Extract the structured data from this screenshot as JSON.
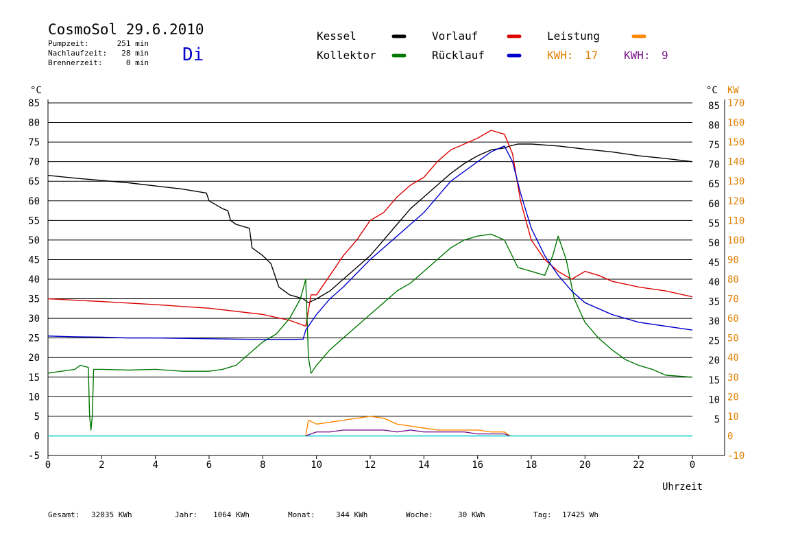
{
  "header": {
    "title": "CosmoSol 29.6.2010",
    "day": "Di",
    "stats": [
      {
        "label": "Pumpzeit:",
        "value": "251 min"
      },
      {
        "label": "Nachlaufzeit:",
        "value": "28 min"
      },
      {
        "label": "Brennerzeit:",
        "value": "0 min"
      }
    ]
  },
  "legend": [
    {
      "name": "Kessel",
      "color": "#000000"
    },
    {
      "name": "Vorlauf",
      "color": "#dd0000"
    },
    {
      "name": "Leistung",
      "color": "#ff8800"
    },
    {
      "name": "Kollektor",
      "color": "#007700"
    },
    {
      "name": "Rücklauf",
      "color": "#0000cc"
    }
  ],
  "kwh": [
    {
      "label": "KWH:",
      "value": "17",
      "color": "#e08000"
    },
    {
      "label": "KWH:",
      "value": "9",
      "color": "#7a1a8a"
    }
  ],
  "footer": [
    {
      "label": "Gesamt:",
      "value": "32035 KWh"
    },
    {
      "label": "Jahr:",
      "value": "1064 KWh"
    },
    {
      "label": "Monat:",
      "value": "344 KWh"
    },
    {
      "label": "Woche:",
      "value": "30 KWh"
    },
    {
      "label": "Tag:",
      "value": "17425 Wh"
    }
  ],
  "chart_data": {
    "type": "line",
    "xlabel": "Uhrzeit",
    "ylabel_left": "°C",
    "ylabel_right_c": "°C",
    "ylabel_right_kw": "KW",
    "xlim": [
      0,
      24
    ],
    "ylim": [
      -5,
      85
    ],
    "ylim_kw": [
      -10,
      170
    ],
    "x_ticks": [
      "0",
      "2",
      "4",
      "6",
      "8",
      "10",
      "12",
      "14",
      "16",
      "18",
      "20",
      "22",
      "0"
    ],
    "y_ticks_left": [
      "85",
      "80",
      "75",
      "70",
      "65",
      "60",
      "55",
      "50",
      "45",
      "40",
      "35",
      "30",
      "25",
      "20",
      "15",
      "10",
      "5",
      "0",
      "-5"
    ],
    "y_ticks_right": [
      "85",
      "80",
      "75",
      "70",
      "65",
      "60",
      "55",
      "50",
      "45",
      "40",
      "35",
      "30",
      "25",
      "20",
      "15",
      "10",
      "5"
    ],
    "y_ticks_kw": [
      "170",
      "160",
      "150",
      "140",
      "130",
      "120",
      "110",
      "100",
      "90",
      "80",
      "70",
      "60",
      "50",
      "40",
      "30",
      "20",
      "10",
      "0",
      "-10"
    ],
    "grid": true,
    "series": [
      {
        "name": "Kessel",
        "color": "#000000",
        "x": [
          0,
          1,
          2,
          3,
          4,
          5,
          5.9,
          6.0,
          6.5,
          6.7,
          6.8,
          7.0,
          7.5,
          7.6,
          8.0,
          8.3,
          8.6,
          9.0,
          9.5,
          9.7,
          10.0,
          10.5,
          11,
          11.5,
          12,
          12.5,
          13,
          13.5,
          14,
          14.5,
          15,
          15.5,
          16,
          16.5,
          17,
          17.2,
          17.5,
          18,
          19,
          20,
          21,
          22,
          23,
          24
        ],
        "y": [
          66.5,
          65.8,
          65.2,
          64.6,
          63.8,
          63.0,
          62.0,
          60.0,
          58.0,
          57.5,
          55.0,
          54.0,
          53.0,
          48.0,
          46.0,
          44.0,
          38.0,
          36.0,
          35.0,
          34.0,
          35.0,
          37.0,
          40.0,
          43.0,
          46.0,
          50.0,
          54.0,
          58.0,
          61.0,
          64.0,
          67.0,
          69.5,
          71.5,
          73.0,
          73.5,
          74.0,
          74.5,
          74.5,
          74.0,
          73.2,
          72.5,
          71.5,
          70.8,
          70.0
        ]
      },
      {
        "name": "Vorlauf",
        "color": "#dd0000",
        "x": [
          0,
          2,
          4,
          6,
          8,
          9,
          9.6,
          9.8,
          10,
          10.5,
          11,
          11.5,
          12,
          12.5,
          13,
          13.5,
          14,
          14.5,
          15,
          15.5,
          16,
          16.5,
          17,
          17.3,
          17.6,
          18,
          18.5,
          19,
          19.5,
          20,
          20.5,
          21,
          22,
          23,
          24
        ],
        "y": [
          35.0,
          34.3,
          33.5,
          32.6,
          31.0,
          29.5,
          28.0,
          36.0,
          36.0,
          41.0,
          46.0,
          50.0,
          55.0,
          57.0,
          61.0,
          64.0,
          66.0,
          70.0,
          73.0,
          74.5,
          76.0,
          78.0,
          77.0,
          72.0,
          60.0,
          50.0,
          45.0,
          42.0,
          40.0,
          42.0,
          41.0,
          39.5,
          38.0,
          37.0,
          35.5
        ]
      },
      {
        "name": "Kollektor",
        "color": "#007700",
        "x": [
          0,
          0.5,
          1.0,
          1.2,
          1.5,
          1.55,
          1.6,
          1.65,
          1.7,
          2,
          3,
          4,
          5,
          6,
          6.5,
          7,
          7.5,
          8,
          8.5,
          9.0,
          9.4,
          9.6,
          9.7,
          9.8,
          10,
          10.5,
          11,
          11.5,
          12,
          12.5,
          13,
          13.5,
          14,
          14.5,
          15,
          15.5,
          16,
          16.5,
          17,
          17.5,
          18,
          18.5,
          18.8,
          19.0,
          19.3,
          19.6,
          20,
          20.5,
          21,
          21.5,
          22,
          22.5,
          23,
          24
        ],
        "y": [
          16.0,
          16.5,
          17.0,
          18.0,
          17.5,
          5.0,
          1.5,
          5.0,
          17.0,
          17.0,
          16.8,
          17.0,
          16.5,
          16.5,
          17.0,
          18.0,
          21.0,
          24.0,
          26.0,
          30.0,
          35.0,
          40.0,
          20.0,
          16.0,
          18.0,
          22.0,
          25.0,
          28.0,
          31.0,
          34.0,
          37.0,
          39.0,
          42.0,
          45.0,
          48.0,
          50.0,
          51.0,
          51.5,
          50.0,
          43.0,
          42.0,
          41.0,
          46.0,
          51.0,
          45.0,
          35.0,
          29.0,
          25.0,
          22.0,
          19.5,
          18.0,
          17.0,
          15.5,
          15.0
        ]
      },
      {
        "name": "Rücklauf",
        "color": "#0000cc",
        "x": [
          0,
          1,
          2,
          3,
          4,
          5,
          6,
          7,
          8,
          9,
          9.5,
          9.6,
          9.8,
          10,
          10.5,
          11,
          11.5,
          12,
          12.5,
          13,
          13.5,
          14,
          14.5,
          15,
          15.5,
          16,
          16.5,
          17,
          17.3,
          17.6,
          18,
          18.5,
          19,
          19.5,
          20,
          21,
          22,
          23,
          24
        ],
        "y": [
          25.5,
          25.3,
          25.2,
          25.0,
          25.0,
          24.9,
          24.8,
          24.7,
          24.6,
          24.6,
          24.7,
          27.0,
          29.0,
          31.0,
          35.0,
          38.0,
          41.5,
          45.0,
          48.0,
          51.0,
          54.0,
          57.0,
          61.0,
          65.0,
          67.5,
          70.0,
          72.5,
          74.0,
          70.0,
          62.0,
          53.0,
          46.0,
          41.0,
          37.0,
          34.0,
          31.0,
          29.0,
          28.0,
          27.0
        ]
      }
    ],
    "power_series": [
      {
        "name": "Leistung",
        "color": "#ff8800",
        "x": [
          9.6,
          9.7,
          10,
          10.5,
          11,
          11.5,
          12,
          12.5,
          13,
          13.5,
          14,
          14.5,
          15,
          15.5,
          16,
          16.5,
          17,
          17.2
        ],
        "kw": [
          0,
          8,
          6,
          7,
          8,
          9,
          10,
          9,
          6,
          5,
          4,
          3,
          3,
          3,
          3,
          2,
          2,
          0
        ]
      },
      {
        "name": "KWH 9",
        "color": "#7a1a8a",
        "x": [
          9.6,
          10,
          10.5,
          11,
          11.5,
          12,
          12.5,
          13,
          13.5,
          14,
          14.5,
          15,
          15.5,
          16,
          16.5,
          17,
          17.2
        ],
        "kw": [
          0,
          2,
          2,
          3,
          3,
          3,
          3,
          2,
          3,
          2,
          2,
          2,
          2,
          1,
          1,
          1,
          0
        ]
      }
    ],
    "baseline_color": "#00cccc"
  }
}
